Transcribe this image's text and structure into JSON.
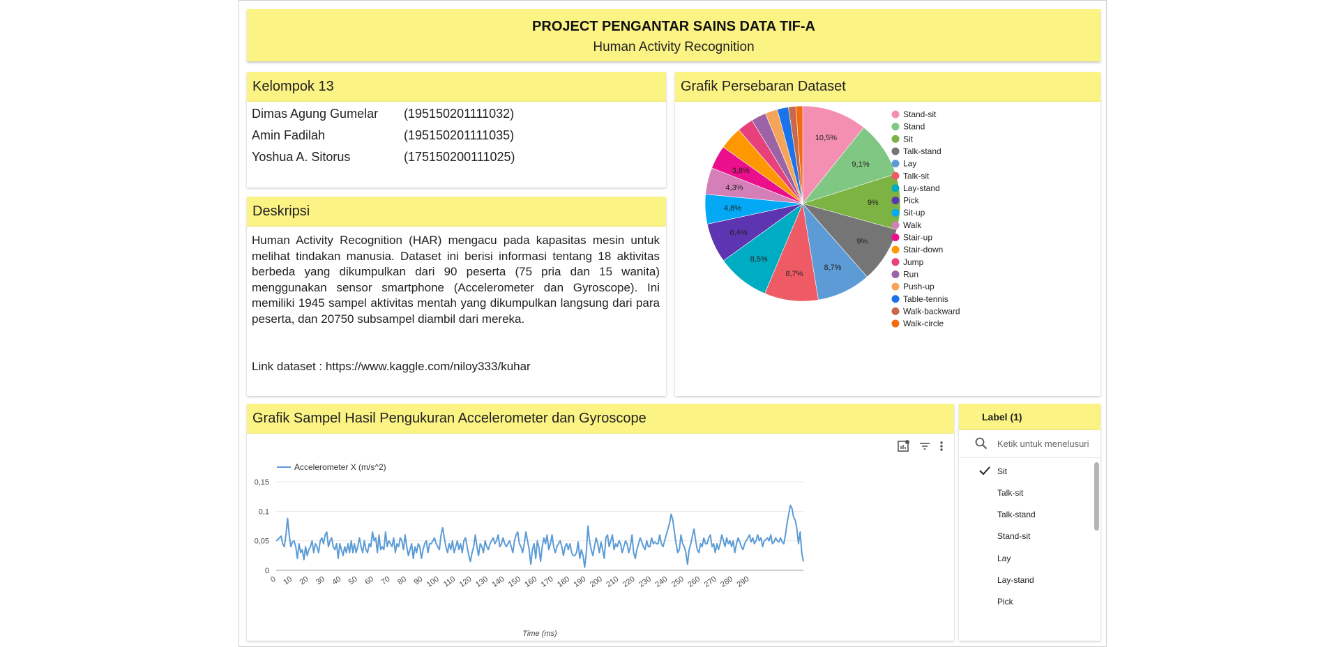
{
  "banner": {
    "title": "PROJECT PENGANTAR SAINS DATA TIF-A",
    "subtitle": "Human Activity Recognition"
  },
  "kelompok": {
    "title": "Kelompok 13",
    "members": [
      {
        "name": "Dimas Agung Gumelar",
        "nim": "(195150201111032)"
      },
      {
        "name": "Amin Fadilah",
        "nim": "(195150201111035)"
      },
      {
        "name": "Yoshua A. Sitorus",
        "nim": "(175150200111025)"
      }
    ]
  },
  "deskripsi": {
    "title": "Deskripsi",
    "text": "Human Activity Recognition (HAR) mengacu pada kapasitas mesin untuk melihat tindakan manusia. Dataset ini berisi informasi tentang 18 aktivitas berbeda yang dikumpulkan dari 90 peserta (75 pria dan 15 wanita) menggunakan sensor smartphone (Accelerometer dan Gyroscope). Ini memiliki 1945 sampel aktivitas mentah yang dikumpulkan langsung dari para peserta, dan 20750 subsampel diambil dari mereka.",
    "link": "Link dataset : https://www.kaggle.com/niloy333/kuhar"
  },
  "pie": {
    "title": "Grafik Persebaran Dataset"
  },
  "line": {
    "title": "Grafik Sampel Hasil Pengukuran Accelerometer dan Gyroscope"
  },
  "toolbar": {
    "icons": [
      "insights-icon",
      "filter-icon",
      "more-vert-icon"
    ]
  },
  "filter": {
    "header": "Label (1)",
    "search_placeholder": "Ketik untuk menelusuri",
    "options": [
      {
        "label": "Sit",
        "checked": true
      },
      {
        "label": "Talk-sit",
        "checked": false
      },
      {
        "label": "Talk-stand",
        "checked": false
      },
      {
        "label": "Stand-sit",
        "checked": false
      },
      {
        "label": "Lay",
        "checked": false
      },
      {
        "label": "Lay-stand",
        "checked": false
      },
      {
        "label": "Pick",
        "checked": false
      }
    ]
  },
  "chart_data": [
    {
      "type": "pie",
      "title": "Grafik Persebaran Dataset",
      "legend_position": "right",
      "slices": [
        {
          "label": "Stand-sit",
          "value": 10.5,
          "display": "10,5%",
          "color": "#f48fb1"
        },
        {
          "label": "Stand",
          "value": 9.1,
          "display": "9,1%",
          "color": "#81c784"
        },
        {
          "label": "Sit",
          "value": 9.0,
          "display": "9%",
          "color": "#7cb342"
        },
        {
          "label": "Talk-stand",
          "value": 9.0,
          "display": "9%",
          "color": "#757575"
        },
        {
          "label": "Lay",
          "value": 8.7,
          "display": "8,7%",
          "color": "#5c9bd6"
        },
        {
          "label": "Talk-sit",
          "value": 8.7,
          "display": "8,7%",
          "color": "#ef5b64"
        },
        {
          "label": "Lay-stand",
          "value": 8.5,
          "display": "8,5%",
          "color": "#00acc1"
        },
        {
          "label": "Pick",
          "value": 6.4,
          "display": "6,4%",
          "color": "#5e35b1"
        },
        {
          "label": "Sit-up",
          "value": 4.8,
          "display": "4,8%",
          "color": "#03a9f4"
        },
        {
          "label": "Walk",
          "value": 4.3,
          "display": "4,3%",
          "color": "#d47fb8"
        },
        {
          "label": "Stair-up",
          "value": 3.8,
          "display": "3,8%",
          "color": "#ec0f8c"
        },
        {
          "label": "Stair-down",
          "value": 3.7,
          "display": "",
          "color": "#ff9800"
        },
        {
          "label": "Jump",
          "value": 2.6,
          "display": "",
          "color": "#e8407b"
        },
        {
          "label": "Run",
          "value": 2.4,
          "display": "",
          "color": "#9c64a6"
        },
        {
          "label": "Push-up",
          "value": 2.0,
          "display": "",
          "color": "#f5a45a"
        },
        {
          "label": "Table-tennis",
          "value": 1.8,
          "display": "",
          "color": "#1a73e8"
        },
        {
          "label": "Walk-backward",
          "value": 1.2,
          "display": "",
          "color": "#c8694a"
        },
        {
          "label": "Walk-circle",
          "value": 1.1,
          "display": "",
          "color": "#f26b0f"
        }
      ]
    },
    {
      "type": "line",
      "title": "",
      "xlabel": "Time (ms)",
      "ylabel": "",
      "ylim": [
        0,
        0.15
      ],
      "yticks": [
        "0",
        "0,05",
        "0,1",
        "0,15"
      ],
      "xticks": [
        "0",
        "10",
        "20",
        "30",
        "40",
        "50",
        "60",
        "70",
        "80",
        "90",
        "100",
        "110",
        "120",
        "130",
        "140",
        "150",
        "160",
        "170",
        "180",
        "190",
        "200",
        "210",
        "220",
        "230",
        "240",
        "250",
        "260",
        "270",
        "280",
        "290"
      ],
      "grid": true,
      "legend_position": "top-left",
      "series": [
        {
          "name": "Accelerometer X (m/s^2)",
          "color": "#5b9bd5",
          "x_step": 1,
          "values": [
            0.05,
            0.052,
            0.055,
            0.058,
            0.045,
            0.04,
            0.06,
            0.088,
            0.06,
            0.04,
            0.048,
            0.05,
            0.04,
            0.02,
            0.045,
            0.03,
            0.035,
            0.018,
            0.04,
            0.025,
            0.035,
            0.04,
            0.05,
            0.03,
            0.045,
            0.04,
            0.03,
            0.05,
            0.055,
            0.045,
            0.06,
            0.065,
            0.04,
            0.05,
            0.055,
            0.04,
            0.035,
            0.045,
            0.02,
            0.045,
            0.035,
            0.025,
            0.04,
            0.03,
            0.045,
            0.03,
            0.05,
            0.03,
            0.045,
            0.03,
            0.04,
            0.055,
            0.04,
            0.03,
            0.05,
            0.035,
            0.03,
            0.045,
            0.04,
            0.065,
            0.05,
            0.055,
            0.03,
            0.06,
            0.035,
            0.04,
            0.035,
            0.065,
            0.04,
            0.05,
            0.045,
            0.04,
            0.055,
            0.03,
            0.045,
            0.04,
            0.055,
            0.05,
            0.035,
            0.06,
            0.04,
            0.025,
            0.035,
            0.045,
            0.02,
            0.04,
            0.03,
            0.045,
            0.04,
            0.02,
            0.035,
            0.045,
            0.05,
            0.03,
            0.045,
            0.045,
            0.05,
            0.055,
            0.045,
            0.04,
            0.035,
            0.06,
            0.072,
            0.055,
            0.04,
            0.03,
            0.045,
            0.035,
            0.05,
            0.03,
            0.04,
            0.05,
            0.035,
            0.045,
            0.03,
            0.05,
            0.055,
            0.04,
            0.025,
            0.015,
            0.03,
            0.04,
            0.06,
            0.04,
            0.025,
            0.045,
            0.04,
            0.03,
            0.05,
            0.04,
            0.035,
            0.045,
            0.05,
            0.055,
            0.045,
            0.05,
            0.06,
            0.04,
            0.045,
            0.055,
            0.045,
            0.04,
            0.045,
            0.05,
            0.04,
            0.03,
            0.05,
            0.06,
            0.065,
            0.045,
            0.04,
            0.03,
            0.045,
            0.065,
            0.05,
            0.035,
            0.01,
            0.035,
            0.045,
            0.02,
            0.05,
            0.038,
            0.015,
            0.04,
            0.055,
            0.045,
            0.06,
            0.035,
            0.045,
            0.06,
            0.04,
            0.03,
            0.04,
            0.045,
            0.05,
            0.04,
            0.025,
            0.04,
            0.045,
            0.035,
            0.045,
            0.03,
            0.025,
            0.025,
            0.03,
            0.048,
            0.02,
            0.035,
            0.025,
            0.005,
            0.03,
            0.075,
            0.05,
            0.035,
            0.025,
            0.04,
            0.055,
            0.045,
            0.03,
            0.048,
            0.035,
            0.02,
            0.055,
            0.06,
            0.04,
            0.05,
            0.06,
            0.035,
            0.045,
            0.04,
            0.05,
            0.045,
            0.03,
            0.04,
            0.05,
            0.045,
            0.03,
            0.04,
            0.06,
            0.03,
            0.02,
            0.035,
            0.045,
            0.055,
            0.048,
            0.04,
            0.035,
            0.05,
            0.04,
            0.04,
            0.055,
            0.045,
            0.048,
            0.045,
            0.045,
            0.06,
            0.045,
            0.04,
            0.05,
            0.06,
            0.07,
            0.08,
            0.095,
            0.085,
            0.065,
            0.045,
            0.03,
            0.035,
            0.06,
            0.045,
            0.04,
            0.03,
            0.01,
            0.035,
            0.045,
            0.058,
            0.07,
            0.05,
            0.035,
            0.03,
            0.045,
            0.04,
            0.055,
            0.045,
            0.045,
            0.055,
            0.06,
            0.04,
            0.045,
            0.03,
            0.045,
            0.035,
            0.045,
            0.06,
            0.05,
            0.04,
            0.055,
            0.045,
            0.05,
            0.04,
            0.05,
            0.03,
            0.045,
            0.055,
            0.048,
            0.04,
            0.035,
            0.045,
            0.05,
            0.055,
            0.06,
            0.048,
            0.055,
            0.045,
            0.05,
            0.06,
            0.05,
            0.055,
            0.04,
            0.05,
            0.052,
            0.055,
            0.05,
            0.06,
            0.045,
            0.048,
            0.055,
            0.05,
            0.048,
            0.055,
            0.048,
            0.045,
            0.06,
            0.08,
            0.095,
            0.11,
            0.105,
            0.09,
            0.085,
            0.07,
            0.045,
            0.065,
            0.03,
            0.015
          ]
        }
      ]
    }
  ]
}
